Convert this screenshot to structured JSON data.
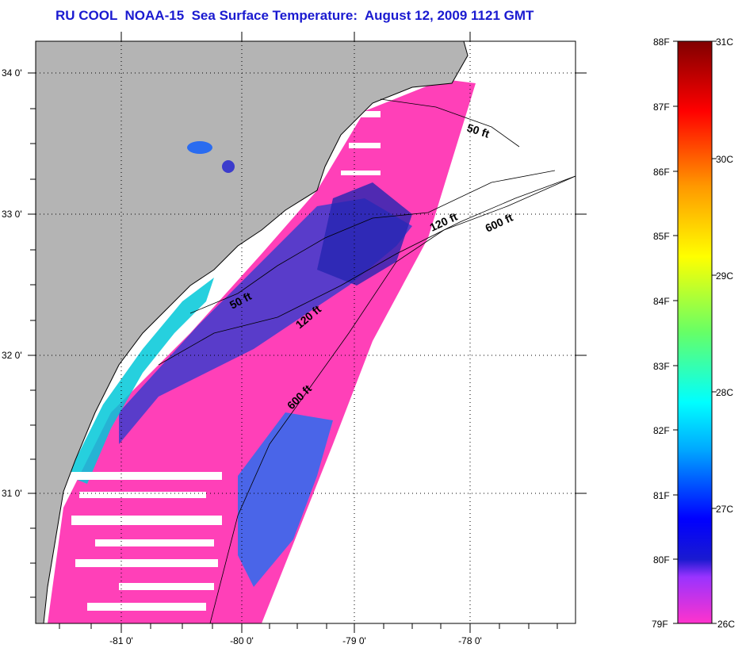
{
  "title": "RU COOL  NOAA-15  Sea Surface Temperature:  August 12, 2009 1121 GMT",
  "lat_labels": [
    "34 0'",
    "33 0'",
    "32 0'",
    "31 0'"
  ],
  "lon_labels": [
    "-81 0'",
    "-80 0'",
    "-79 0'",
    "-78 0'"
  ],
  "depth_labels": [
    "50 ft",
    "120 ft",
    "600 ft",
    "50 ft",
    "120 ft",
    "600 ft"
  ],
  "colorbar": {
    "f_labels": [
      "88F",
      "87F",
      "86F",
      "85F",
      "84F",
      "83F",
      "82F",
      "81F",
      "80F",
      "79F"
    ],
    "c_labels": [
      "31C",
      "30C",
      "29C",
      "28C",
      "27C",
      "26C"
    ],
    "stops": [
      "#ff33cc",
      "#9933ff",
      "#1a1ad0",
      "#0000ff",
      "#00aaff",
      "#00ffff",
      "#66ff66",
      "#ffff00",
      "#ff9900",
      "#ff0000",
      "#800000"
    ]
  },
  "colors": {
    "land": "#b4b4b4",
    "warm_water": "#ff40b8",
    "cool_water": "#3c3ccc",
    "nearshore": "#00c8d8",
    "title": "#1a1ad0"
  }
}
